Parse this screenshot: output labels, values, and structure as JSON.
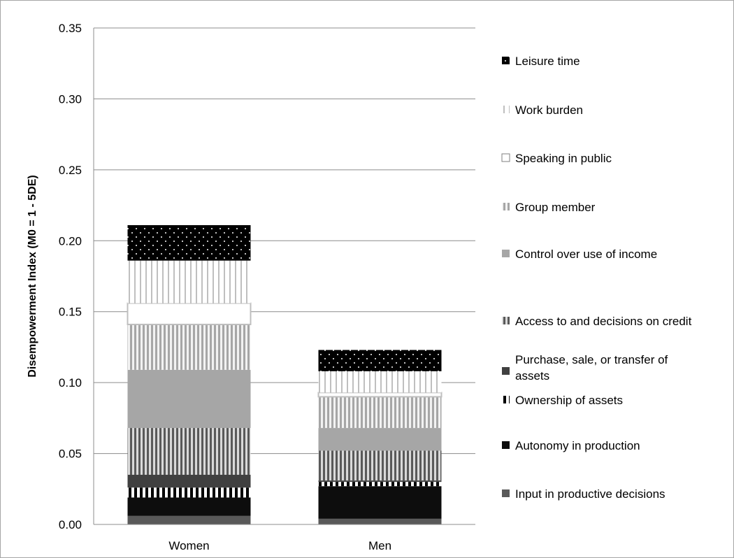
{
  "chart_data": {
    "type": "bar",
    "stacked": true,
    "categories": [
      "Women",
      "Men"
    ],
    "ylabel": "Disempowerment Index  (M0 = 1 - 5DE)",
    "xlabel": "",
    "title": "",
    "ylim": [
      0,
      0.35
    ],
    "yticks": [
      "0.00",
      "0.05",
      "0.10",
      "0.15",
      "0.20",
      "0.25",
      "0.30",
      "0.35"
    ],
    "grid": true,
    "legend_position": "right",
    "legend_order": "top-to-bottom reverse of stack",
    "series": [
      {
        "name": "Input in productive decisions",
        "values": [
          0.006,
          0.004
        ],
        "pattern": "solid-dark-gray"
      },
      {
        "name": "Autonomy in production",
        "values": [
          0.013,
          0.023
        ],
        "pattern": "solid-black"
      },
      {
        "name": "Ownership of assets",
        "values": [
          0.007,
          0.003
        ],
        "pattern": "black-white-vertical-stripes"
      },
      {
        "name": "Purchase, sale, or transfer of assets",
        "values": [
          0.009,
          0.001
        ],
        "pattern": "solid-charcoal"
      },
      {
        "name": "Access to and decisions on credit",
        "values": [
          0.033,
          0.021
        ],
        "pattern": "gray-vertical-stripes"
      },
      {
        "name": "Control over use of income",
        "values": [
          0.041,
          0.016
        ],
        "pattern": "solid-light-gray"
      },
      {
        "name": "Group member",
        "values": [
          0.032,
          0.022
        ],
        "pattern": "light-gray-vertical-stripes"
      },
      {
        "name": "Speaking in public",
        "values": [
          0.015,
          0.003
        ],
        "pattern": "white-outlined"
      },
      {
        "name": "Work burden",
        "values": [
          0.03,
          0.015
        ],
        "pattern": "white-gray-vertical-stripes"
      },
      {
        "name": "Leisure time",
        "values": [
          0.025,
          0.015
        ],
        "pattern": "black-with-white-dots"
      }
    ]
  }
}
